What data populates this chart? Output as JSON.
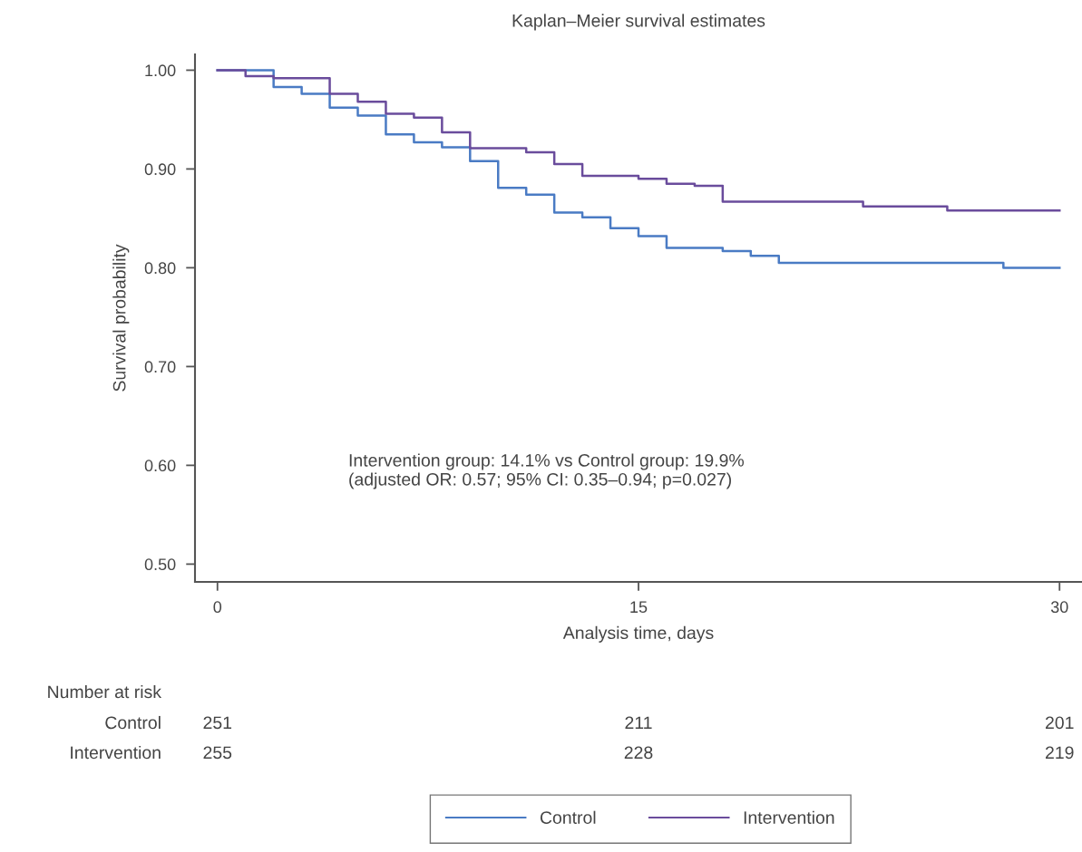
{
  "chart_data": {
    "type": "step",
    "title": "Kaplan–Meier survival estimates",
    "xlabel": "Analysis time, days",
    "ylabel": "Survival probability",
    "xlim": [
      -0.8,
      30.8
    ],
    "xticks": [
      0,
      15,
      30
    ],
    "ylim": [
      0.482,
      1.016
    ],
    "yticks": [
      {
        "value": 0.5,
        "label": "0.50"
      },
      {
        "value": 0.6,
        "label": "0.60"
      },
      {
        "value": 0.7,
        "label": "0.70"
      },
      {
        "value": 0.8,
        "label": "0.80"
      },
      {
        "value": 0.9,
        "label": "0.90"
      },
      {
        "value": 1.0,
        "label": "1.00"
      }
    ],
    "grid": false,
    "legend": "bottom",
    "line_style": "solid",
    "marker": "none",
    "series": [
      {
        "name": "Control",
        "color": "#4a7bc4",
        "x": [
          0,
          2,
          3,
          4,
          5,
          6,
          7,
          8,
          9,
          10,
          11,
          12,
          13,
          14,
          15,
          16,
          18,
          19,
          20,
          28,
          30
        ],
        "values": [
          1.0,
          0.983,
          0.976,
          0.962,
          0.954,
          0.935,
          0.927,
          0.922,
          0.908,
          0.881,
          0.874,
          0.856,
          0.851,
          0.84,
          0.832,
          0.82,
          0.817,
          0.812,
          0.805,
          0.8,
          0.8
        ]
      },
      {
        "name": "Intervention",
        "color": "#6a4c9c",
        "x": [
          0,
          1,
          2,
          4,
          5,
          6,
          7,
          8,
          9,
          11,
          12,
          13,
          15,
          16,
          17,
          18,
          23,
          26,
          30
        ],
        "values": [
          1.0,
          0.994,
          0.992,
          0.976,
          0.968,
          0.956,
          0.952,
          0.937,
          0.921,
          0.917,
          0.905,
          0.893,
          0.89,
          0.885,
          0.883,
          0.867,
          0.862,
          0.858,
          0.858
        ]
      }
    ],
    "annotations": [
      "Intervention group: 14.1% vs Control group: 19.9%\n(adjusted OR: 0.57; 95% CI: 0.35–0.94; p=0.027)",
      "Number at risk",
      "Control",
      "251",
      "211",
      "201",
      "Intervention",
      "255",
      "228",
      "219"
    ]
  }
}
